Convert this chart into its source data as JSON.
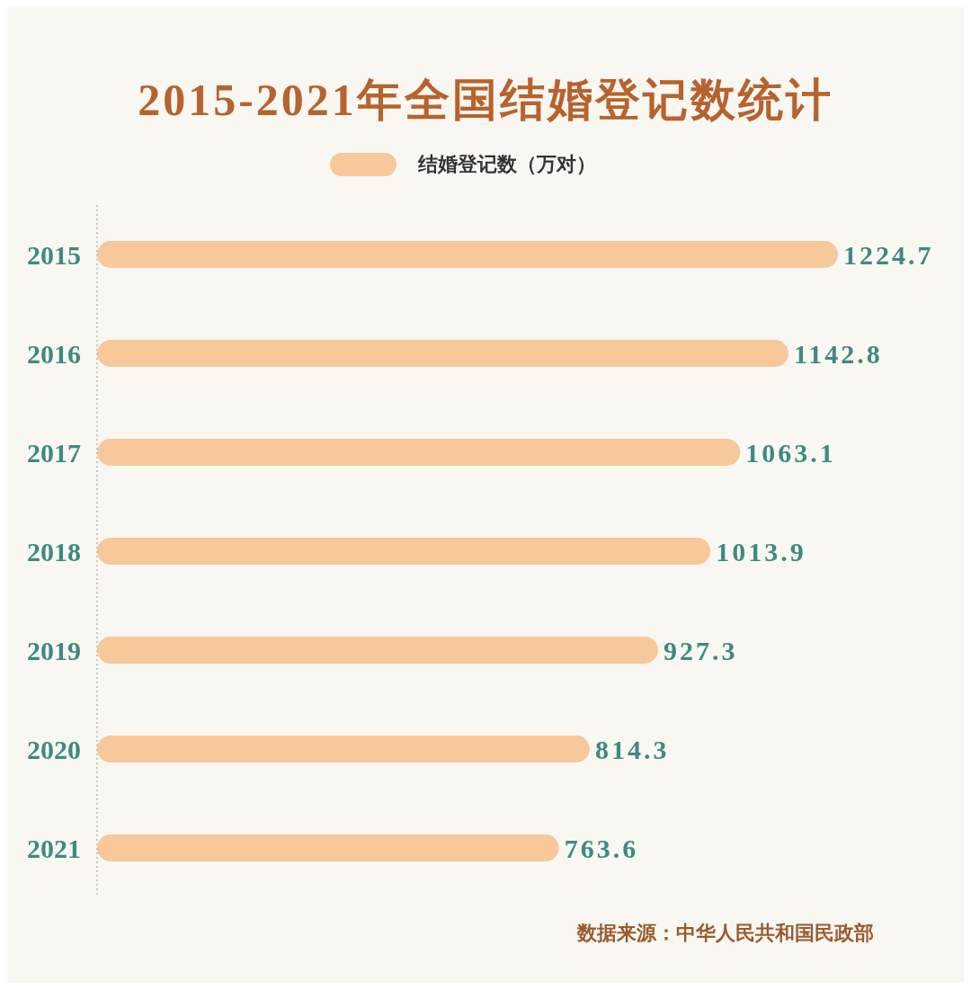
{
  "chart_data": {
    "type": "bar",
    "orientation": "horizontal",
    "title": "2015-2021年全国结婚登记数统计",
    "categories": [
      "2015",
      "2016",
      "2017",
      "2018",
      "2019",
      "2020",
      "2021"
    ],
    "series": [
      {
        "name": "结婚登记数（万对）",
        "color": "#f6c89a",
        "values": [
          1224.7,
          1142.8,
          1063.1,
          1013.9,
          927.3,
          814.3,
          763.6
        ]
      }
    ],
    "data_labels": true,
    "legend": "top",
    "grid": false,
    "annotations": [
      "数据来源：中华人民共和国民政部"
    ]
  }
}
